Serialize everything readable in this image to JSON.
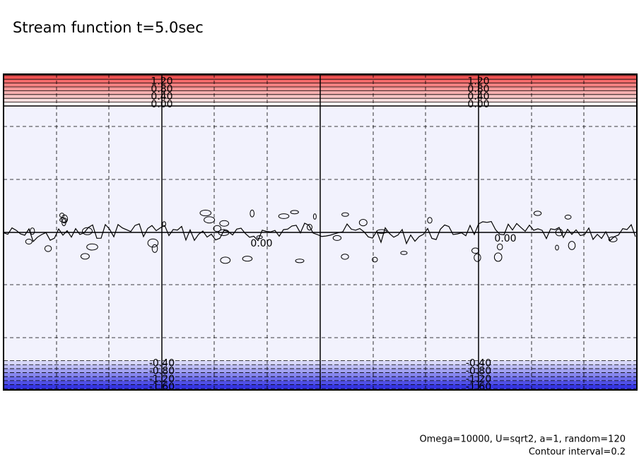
{
  "chart_data": {
    "type": "contour",
    "title": "Stream function t=5.0sec",
    "annotations": [
      "Omega=10000, U=sqrt2, a=1, random=120",
      "Contour interval=0.2"
    ],
    "contour_interval": 0.2,
    "levels": [
      -1.6,
      -1.4,
      -1.2,
      -1.0,
      -0.8,
      -0.6,
      -0.4,
      -0.2,
      0,
      0.2,
      0.4,
      0.6,
      0.8,
      1.0,
      1.2,
      1.4,
      1.6
    ],
    "labeled_levels": [
      {
        "value": 1.2,
        "label": "1.20"
      },
      {
        "value": 0.8,
        "label": "0.80"
      },
      {
        "value": 0.4,
        "label": "0.40"
      },
      {
        "value": 0,
        "label": "0.00"
      },
      {
        "value": -0.4,
        "label": "-0.40"
      },
      {
        "value": -0.8,
        "label": "-0.80"
      },
      {
        "value": -1.2,
        "label": "-1.20"
      },
      {
        "value": -1.6,
        "label": "-1.60"
      }
    ],
    "positive_color": "#f04848",
    "negative_color": "#2828e0",
    "grid": true
  }
}
